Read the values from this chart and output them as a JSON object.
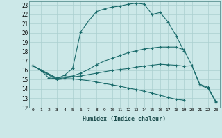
{
  "xlabel": "Humidex (Indice chaleur)",
  "background_color": "#cce8e8",
  "grid_color": "#aacfcf",
  "line_color": "#1a6b6b",
  "xlim": [
    -0.5,
    23.5
  ],
  "ylim": [
    12,
    23.4
  ],
  "xticks": [
    0,
    1,
    2,
    3,
    4,
    5,
    6,
    7,
    8,
    9,
    10,
    11,
    12,
    13,
    14,
    15,
    16,
    17,
    18,
    19,
    20,
    21,
    22,
    23
  ],
  "yticks": [
    12,
    13,
    14,
    15,
    16,
    17,
    18,
    19,
    20,
    21,
    22,
    23
  ],
  "line1_x": [
    0,
    1,
    2,
    3,
    4,
    5,
    6,
    7,
    8,
    9,
    10,
    11,
    12,
    13,
    14,
    15,
    16,
    17,
    18,
    19
  ],
  "line1_y": [
    16.5,
    16.0,
    15.2,
    15.1,
    15.5,
    16.2,
    20.1,
    21.3,
    22.3,
    22.6,
    22.8,
    22.9,
    23.1,
    23.2,
    23.1,
    22.0,
    22.2,
    21.2,
    19.7,
    18.1
  ],
  "line2_x": [
    0,
    3,
    4,
    5,
    6,
    7,
    8,
    9,
    10,
    11,
    12,
    13,
    14,
    15,
    16,
    17,
    18,
    19,
    20,
    21,
    22,
    23
  ],
  "line2_y": [
    16.5,
    15.2,
    15.3,
    15.4,
    15.7,
    16.1,
    16.6,
    17.0,
    17.3,
    17.6,
    17.9,
    18.1,
    18.3,
    18.4,
    18.5,
    18.5,
    18.5,
    18.2,
    16.5,
    14.5,
    14.2,
    12.7
  ],
  "line3_x": [
    0,
    3,
    4,
    5,
    6,
    7,
    8,
    9,
    10,
    11,
    12,
    13,
    14,
    15,
    16,
    17,
    18,
    19,
    20,
    21,
    22,
    23
  ],
  "line3_y": [
    16.5,
    15.1,
    15.2,
    15.3,
    15.4,
    15.55,
    15.7,
    15.85,
    16.0,
    16.1,
    16.2,
    16.35,
    16.45,
    16.55,
    16.65,
    16.6,
    16.55,
    16.45,
    16.5,
    14.4,
    14.1,
    12.6
  ],
  "line4_x": [
    0,
    3,
    4,
    5,
    6,
    7,
    8,
    9,
    10,
    11,
    12,
    13,
    14,
    15,
    16,
    17,
    18,
    19,
    22,
    23
  ],
  "line4_y": [
    16.5,
    15.0,
    15.1,
    15.1,
    15.0,
    14.9,
    14.75,
    14.6,
    14.45,
    14.3,
    14.1,
    13.95,
    13.75,
    13.55,
    13.35,
    13.1,
    12.9,
    12.8,
    null,
    12.55
  ]
}
